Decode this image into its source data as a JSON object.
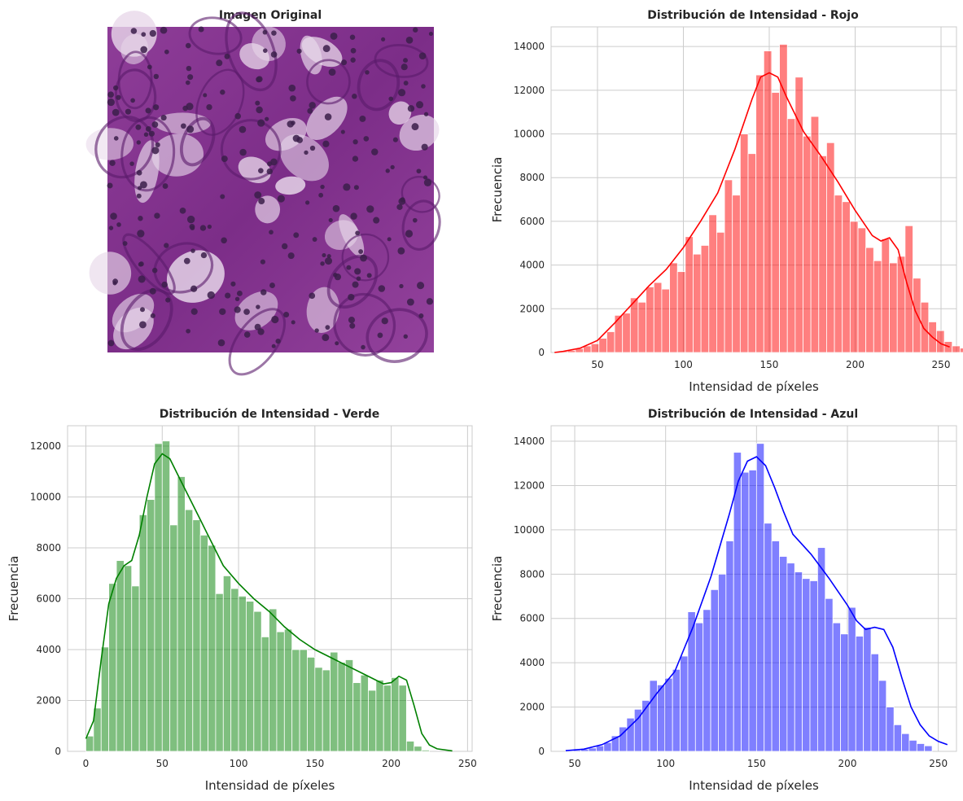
{
  "image_panel": {
    "title": "Imagen Original"
  },
  "chart_data": [
    {
      "type": "bar",
      "channel": "red",
      "title": "Distribución de Intensidad - Rojo",
      "xlabel": "Intensidad de píxeles",
      "ylabel": "Frecuencia",
      "color": "#ff0000",
      "xlim": [
        23,
        259
      ],
      "ylim": [
        0,
        14900
      ],
      "xticks": [
        50,
        100,
        150,
        200,
        250
      ],
      "yticks": [
        0,
        2000,
        4000,
        6000,
        8000,
        10000,
        12000,
        14000
      ],
      "grid": true,
      "bin_start": 28,
      "bin_width": 4.57,
      "values": [
        50,
        100,
        180,
        300,
        400,
        650,
        950,
        1700,
        1800,
        2500,
        2300,
        3000,
        3200,
        2900,
        4100,
        3700,
        5300,
        4500,
        4900,
        6300,
        5500,
        7900,
        7200,
        10000,
        9100,
        12700,
        13800,
        11900,
        14100,
        10700,
        12600,
        9900,
        10800,
        9000,
        9600,
        7200,
        6900,
        6000,
        5700,
        4800,
        4200,
        5200,
        4100,
        4400,
        5800,
        3400,
        2300,
        1400,
        1000,
        500,
        300,
        200
      ],
      "kde": [
        [
          25,
          0
        ],
        [
          30,
          50
        ],
        [
          40,
          200
        ],
        [
          50,
          550
        ],
        [
          60,
          1350
        ],
        [
          70,
          2200
        ],
        [
          80,
          3050
        ],
        [
          90,
          3800
        ],
        [
          100,
          4800
        ],
        [
          110,
          6000
        ],
        [
          120,
          7300
        ],
        [
          130,
          9300
        ],
        [
          140,
          11600
        ],
        [
          145,
          12600
        ],
        [
          150,
          12800
        ],
        [
          155,
          12600
        ],
        [
          160,
          11700
        ],
        [
          170,
          10100
        ],
        [
          180,
          9000
        ],
        [
          190,
          7800
        ],
        [
          200,
          6500
        ],
        [
          210,
          5350
        ],
        [
          215,
          5100
        ],
        [
          220,
          5250
        ],
        [
          225,
          4700
        ],
        [
          230,
          3200
        ],
        [
          235,
          1900
        ],
        [
          240,
          1100
        ],
        [
          245,
          700
        ],
        [
          250,
          400
        ],
        [
          255,
          250
        ]
      ]
    },
    {
      "type": "bar",
      "channel": "green",
      "title": "Distribución de Intensidad - Verde",
      "xlabel": "Intensidad de píxeles",
      "ylabel": "Frecuencia",
      "color": "#008000",
      "xlim": [
        -12,
        253
      ],
      "ylim": [
        0,
        12800
      ],
      "xticks": [
        0,
        50,
        100,
        150,
        200,
        250
      ],
      "yticks": [
        0,
        2000,
        4000,
        6000,
        8000,
        10000,
        12000
      ],
      "grid": true,
      "bin_start": 0,
      "bin_width": 5.0,
      "values": [
        600,
        1700,
        4100,
        6600,
        7500,
        7300,
        6500,
        9300,
        9900,
        12100,
        12200,
        8900,
        10800,
        9500,
        9100,
        8500,
        8100,
        6200,
        6900,
        6400,
        6100,
        5900,
        5500,
        4500,
        5600,
        4700,
        4800,
        4000,
        4000,
        3700,
        3300,
        3200,
        3900,
        3500,
        3600,
        2700,
        3000,
        2400,
        2800,
        2600,
        2900,
        2600,
        400,
        200,
        50,
        0,
        0,
        0,
        0,
        0
      ],
      "kde": [
        [
          0,
          500
        ],
        [
          5,
          1200
        ],
        [
          10,
          3600
        ],
        [
          15,
          5800
        ],
        [
          20,
          6800
        ],
        [
          25,
          7300
        ],
        [
          30,
          7500
        ],
        [
          35,
          8500
        ],
        [
          40,
          10000
        ],
        [
          45,
          11300
        ],
        [
          50,
          11700
        ],
        [
          55,
          11500
        ],
        [
          60,
          10900
        ],
        [
          65,
          10300
        ],
        [
          70,
          9700
        ],
        [
          75,
          9100
        ],
        [
          80,
          8500
        ],
        [
          90,
          7300
        ],
        [
          100,
          6600
        ],
        [
          110,
          6000
        ],
        [
          120,
          5500
        ],
        [
          130,
          4900
        ],
        [
          140,
          4400
        ],
        [
          150,
          4000
        ],
        [
          160,
          3700
        ],
        [
          170,
          3400
        ],
        [
          180,
          3100
        ],
        [
          190,
          2800
        ],
        [
          195,
          2650
        ],
        [
          200,
          2700
        ],
        [
          205,
          2950
        ],
        [
          210,
          2800
        ],
        [
          215,
          1800
        ],
        [
          220,
          700
        ],
        [
          225,
          250
        ],
        [
          230,
          100
        ],
        [
          240,
          20
        ]
      ]
    },
    {
      "type": "bar",
      "channel": "blue",
      "title": "Distribución de Intensidad - Azul",
      "xlabel": "Intensidad de píxeles",
      "ylabel": "Frecuencia",
      "color": "#0000ff",
      "xlim": [
        37,
        260
      ],
      "ylim": [
        0,
        14700
      ],
      "xticks": [
        50,
        100,
        150,
        200,
        250
      ],
      "yticks": [
        0,
        2000,
        4000,
        6000,
        8000,
        10000,
        12000,
        14000
      ],
      "grid": true,
      "bin_start": 45,
      "bin_width": 4.2,
      "values": [
        30,
        50,
        100,
        150,
        250,
        400,
        700,
        1100,
        1500,
        1900,
        2300,
        3200,
        3000,
        3300,
        3700,
        4300,
        6300,
        5800,
        6400,
        7300,
        8000,
        9500,
        13500,
        12600,
        12700,
        13900,
        10300,
        9500,
        8800,
        8500,
        8100,
        7800,
        7700,
        9200,
        6900,
        5800,
        5300,
        6500,
        5200,
        5600,
        4400,
        3200,
        2000,
        1200,
        800,
        500,
        350,
        250
      ],
      "kde": [
        [
          45,
          30
        ],
        [
          55,
          100
        ],
        [
          65,
          300
        ],
        [
          75,
          700
        ],
        [
          85,
          1500
        ],
        [
          95,
          2600
        ],
        [
          105,
          3600
        ],
        [
          115,
          5600
        ],
        [
          125,
          7900
        ],
        [
          135,
          10700
        ],
        [
          140,
          12200
        ],
        [
          145,
          13100
        ],
        [
          150,
          13300
        ],
        [
          155,
          12900
        ],
        [
          160,
          11900
        ],
        [
          165,
          10800
        ],
        [
          170,
          9800
        ],
        [
          180,
          8900
        ],
        [
          190,
          7800
        ],
        [
          200,
          6600
        ],
        [
          205,
          5900
        ],
        [
          210,
          5500
        ],
        [
          215,
          5600
        ],
        [
          220,
          5500
        ],
        [
          225,
          4700
        ],
        [
          230,
          3300
        ],
        [
          235,
          2000
        ],
        [
          240,
          1200
        ],
        [
          245,
          700
        ],
        [
          250,
          450
        ],
        [
          255,
          300
        ]
      ]
    }
  ]
}
